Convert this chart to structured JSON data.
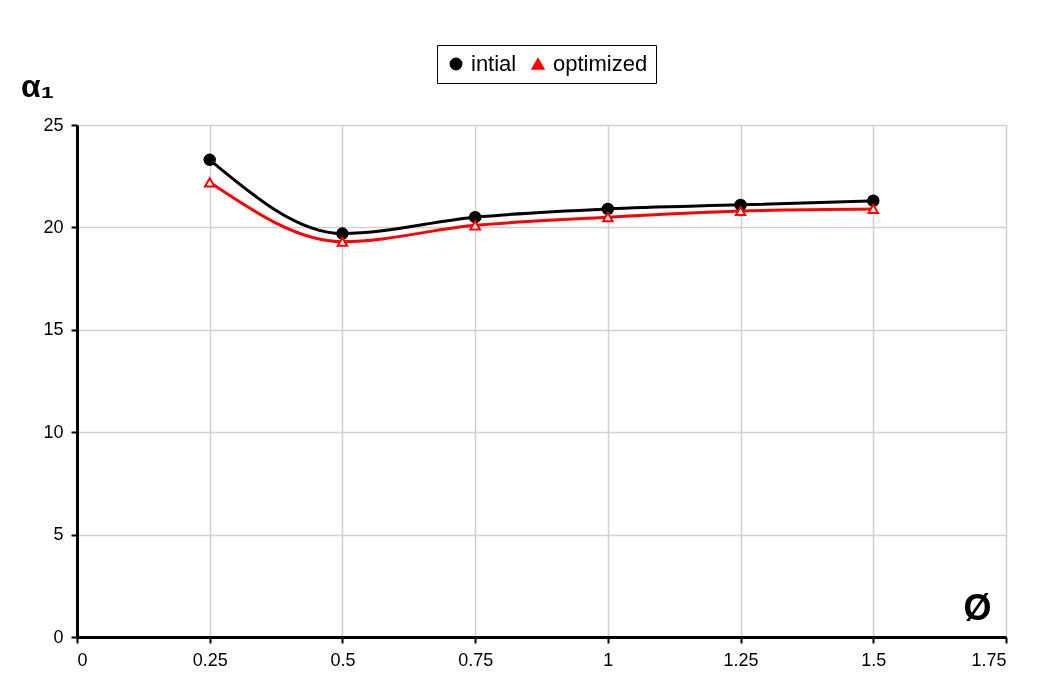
{
  "chart_data": {
    "type": "line",
    "xlabel": "Ø",
    "ylabel": "α₁",
    "x": [
      0.25,
      0.5,
      0.75,
      1,
      1.25,
      1.5
    ],
    "series": [
      {
        "name": "intial",
        "color": "#000000",
        "marker": "circle",
        "values": [
          23.3,
          19.7,
          20.5,
          20.9,
          21.1,
          21.3
        ]
      },
      {
        "name": "optimized",
        "color": "#ff0000",
        "marker": "triangle",
        "values": [
          22.2,
          19.3,
          20.1,
          20.5,
          20.8,
          20.9
        ]
      }
    ],
    "xlim": [
      0,
      1.75
    ],
    "xticks": [
      0,
      0.25,
      0.5,
      0.75,
      1,
      1.25,
      1.5,
      1.75
    ],
    "ylim": [
      0,
      25
    ],
    "yticks": [
      0,
      5,
      10,
      15,
      20,
      25
    ],
    "grid": true,
    "legend": "top"
  }
}
